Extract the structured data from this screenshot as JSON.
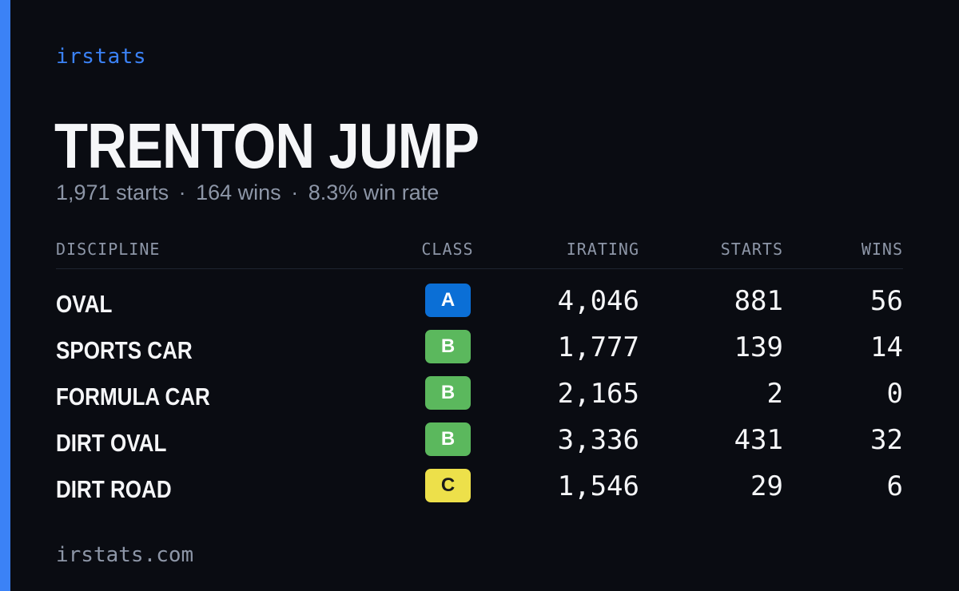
{
  "brand": "irstats",
  "driver": {
    "name": "TRENTON JUMP",
    "summary": {
      "starts": "1,971 starts",
      "wins": "164 wins",
      "win_rate": "8.3% win rate",
      "separator": "·"
    }
  },
  "table": {
    "headers": {
      "discipline": "DISCIPLINE",
      "class": "CLASS",
      "irating": "IRATING",
      "starts": "STARTS",
      "wins": "WINS"
    },
    "rows": [
      {
        "discipline": "OVAL",
        "class": "A",
        "irating": "4,046",
        "starts": "881",
        "wins": "56"
      },
      {
        "discipline": "SPORTS CAR",
        "class": "B",
        "irating": "1,777",
        "starts": "139",
        "wins": "14"
      },
      {
        "discipline": "FORMULA CAR",
        "class": "B",
        "irating": "2,165",
        "starts": "2",
        "wins": "0"
      },
      {
        "discipline": "DIRT OVAL",
        "class": "B",
        "irating": "3,336",
        "starts": "431",
        "wins": "32"
      },
      {
        "discipline": "DIRT ROAD",
        "class": "C",
        "irating": "1,546",
        "starts": "29",
        "wins": "6"
      }
    ]
  },
  "class_colors": {
    "A": {
      "bg": "#0b6fd6",
      "fg": "#ffffff"
    },
    "B": {
      "bg": "#5bb85d",
      "fg": "#ffffff"
    },
    "C": {
      "bg": "#ede04a",
      "fg": "#1a1a1a"
    }
  },
  "colors": {
    "background": "#0a0c12",
    "accent": "#3b82f6",
    "text": "#f5f6f8",
    "muted": "#8d96a7"
  },
  "footer": "irstats.com"
}
